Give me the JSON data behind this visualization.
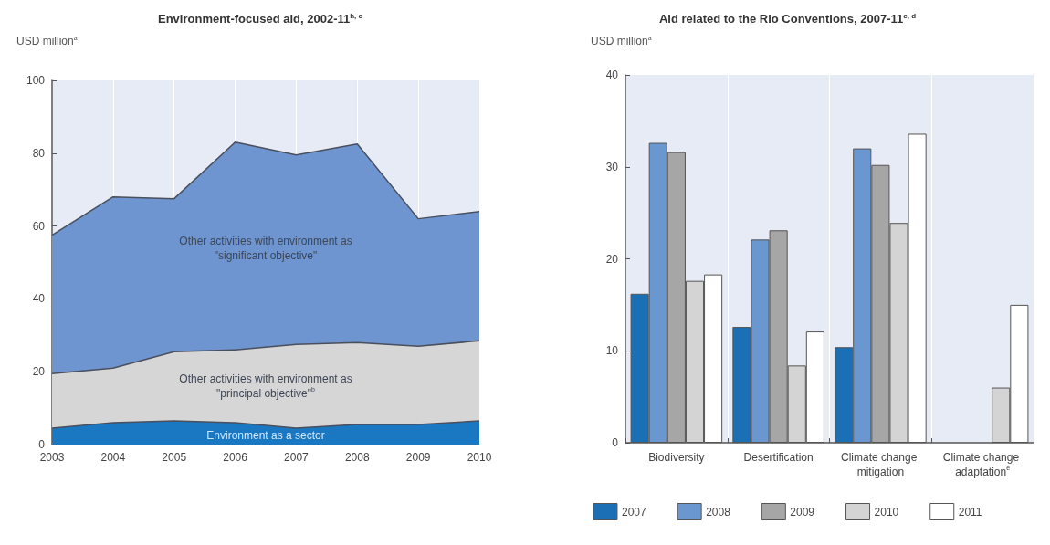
{
  "chart_data": [
    {
      "type": "area",
      "title": "Environment-focused aid, 2002-11$^{h, c}$",
      "ylabel": "USD million$^{a}$",
      "stacked": true,
      "x": [
        2003,
        2004,
        2005,
        2006,
        2007,
        2008,
        2009,
        2010
      ],
      "series": [
        {
          "name": "Environment as a sector",
          "color": "#1a78c2",
          "values": [
            4.5,
            6,
            6.5,
            6,
            4.5,
            5.5,
            5.5,
            6.5
          ]
        },
        {
          "name": "Other activities with environment as \"principal objective\"$^{b}$",
          "color": "#d6d6d6",
          "values": [
            15,
            15,
            19,
            20,
            23,
            22.5,
            21.5,
            22
          ]
        },
        {
          "name": "Other activities with environment as \"significant objective\"",
          "color": "#6e95cf",
          "values": [
            38,
            47,
            42,
            57,
            52,
            54.5,
            35,
            35.5
          ]
        }
      ],
      "xlim": [
        2003,
        2010
      ],
      "xticks": [
        2003,
        2004,
        2005,
        2006,
        2007,
        2008,
        2009,
        2010
      ],
      "ylim": [
        0,
        100
      ],
      "yticks": [
        0,
        20,
        40,
        60,
        80,
        100
      ],
      "grid": "x",
      "legend": false
    },
    {
      "type": "bar",
      "title": "Aid related to the Rio Conventions, 2007-11$^{c, d}$",
      "ylabel": "USD million$^{a}$",
      "categories": [
        "Biodiversity",
        "Desertification",
        "Climate change mitigation",
        "Climate change adaptation$^{e}$"
      ],
      "series": [
        {
          "name": "2007",
          "color": "#1a6fb5",
          "values": [
            16.2,
            12.6,
            10.4,
            null
          ]
        },
        {
          "name": "2008",
          "color": "#6b97d1",
          "values": [
            32.6,
            22.1,
            32,
            null
          ]
        },
        {
          "name": "2009",
          "color": "#a6a6a6",
          "values": [
            31.6,
            23.1,
            30.2,
            null
          ]
        },
        {
          "name": "2010",
          "color": "#d4d4d4",
          "values": [
            17.6,
            8.4,
            23.9,
            6
          ]
        },
        {
          "name": "2011",
          "color": "#ffffff",
          "values": [
            18.3,
            12.1,
            33.6,
            15
          ]
        }
      ],
      "ylim": [
        0,
        40
      ],
      "yticks": [
        0,
        10,
        20,
        30,
        40
      ],
      "grid": "x",
      "legend": "bottom"
    }
  ]
}
